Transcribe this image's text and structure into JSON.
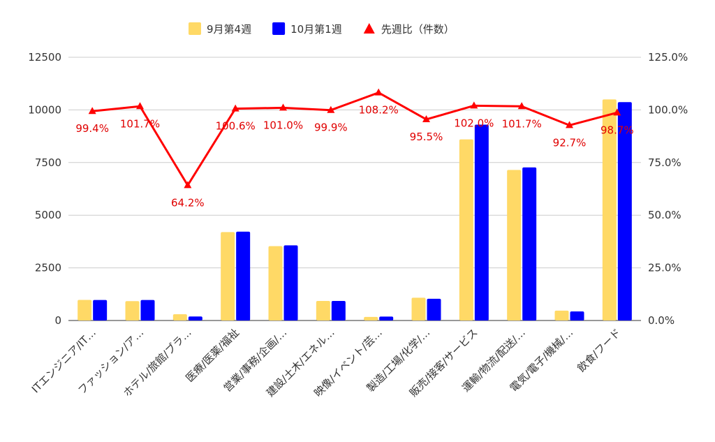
{
  "chart_data": {
    "type": "bar",
    "categories": [
      "ITエンジニア/IT…",
      "ファッション/ア…",
      "ホテル/旅館/ブラ…",
      "医療/医薬/福祉",
      "営業/事務/企画/…",
      "建設/土木/エネル…",
      "映像/イベント/芸…",
      "製造/工場/化学/…",
      "販売/接客/サービス",
      "運輸/物流/配送/…",
      "電気/電子/機械/…",
      "飲食/フード"
    ],
    "series": [
      {
        "name": "9月第4週",
        "type": "bar",
        "axis": "left",
        "color": "#ffd966",
        "values": [
          980,
          920,
          300,
          4200,
          3530,
          930,
          170,
          1080,
          8600,
          7150,
          470,
          10500
        ]
      },
      {
        "name": "10月第1週",
        "type": "bar",
        "axis": "left",
        "color": "#0000ff",
        "values": [
          975,
          975,
          190,
          4220,
          3570,
          930,
          185,
          1030,
          9300,
          7270,
          430,
          10370
        ]
      },
      {
        "name": "先週比（件数）",
        "type": "line",
        "axis": "right",
        "color": "#ff0000",
        "marker": "triangle",
        "values": [
          99.4,
          101.7,
          64.2,
          100.6,
          101.0,
          99.9,
          108.2,
          95.5,
          102.0,
          101.7,
          92.7,
          98.7
        ],
        "labels": [
          "99.4%",
          "101.7%",
          "64.2%",
          "100.6%",
          "101.0%",
          "99.9%",
          "108.2%",
          "95.5%",
          "102.0%",
          "101.7%",
          "92.7%",
          "98.7%"
        ]
      }
    ],
    "ylim": [
      0,
      12500
    ],
    "yticks": [
      "0",
      "2500",
      "5000",
      "7500",
      "10000",
      "12500"
    ],
    "y2lim": [
      0,
      125
    ],
    "y2ticks": [
      "0.0%",
      "25.0%",
      "50.0%",
      "75.0%",
      "100.0%",
      "125.0%"
    ],
    "grid": true,
    "legend": "top-center"
  }
}
